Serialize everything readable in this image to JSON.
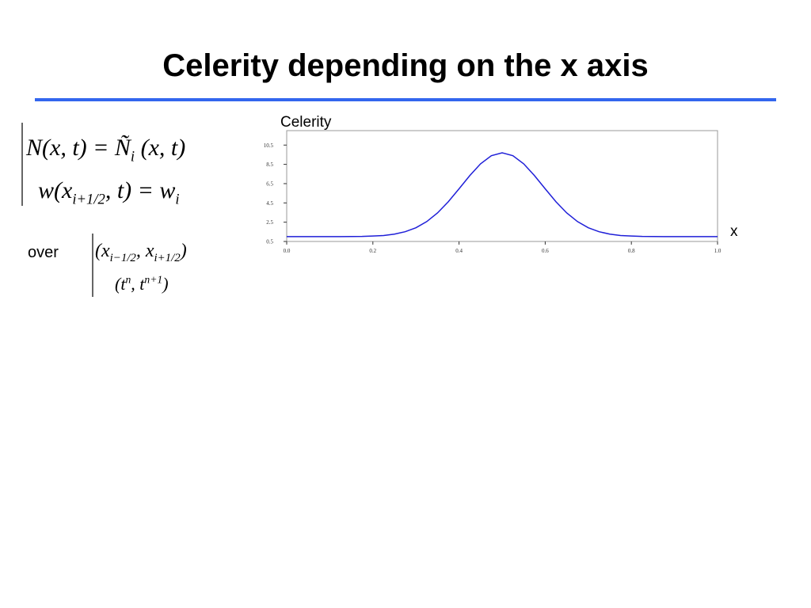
{
  "header": {
    "title": "Celerity depending on the x axis"
  },
  "formulas": [
    [
      {
        "text": "N(x, t) = Ñ"
      },
      {
        "text": "i",
        "pos": "sub"
      },
      {
        "text": " (x, t)"
      }
    ],
    [
      {
        "text": "w(x"
      },
      {
        "text": "i+1/2",
        "pos": "sub"
      },
      {
        "text": ", t) = w"
      },
      {
        "text": "i",
        "pos": "sub"
      }
    ],
    [
      {
        "text": "(x"
      },
      {
        "text": "i−1/2",
        "pos": "sub"
      },
      {
        "text": ", x"
      },
      {
        "text": "i+1/2",
        "pos": "sub"
      },
      {
        "text": ")"
      }
    ],
    [
      {
        "text": "(t"
      },
      {
        "text": "n",
        "pos": "sup"
      },
      {
        "text": ", t"
      },
      {
        "text": "n+1",
        "pos": "sup"
      },
      {
        "text": ")"
      }
    ]
  ],
  "over_label": "over",
  "chart_data": {
    "type": "line",
    "y_label": "Celerity",
    "x_label": "x",
    "x": [
      0,
      0.025,
      0.05,
      0.075,
      0.1,
      0.125,
      0.15,
      0.175,
      0.2,
      0.225,
      0.25,
      0.275,
      0.3,
      0.325,
      0.35,
      0.375,
      0.4,
      0.425,
      0.45,
      0.475,
      0.5,
      0.525,
      0.55,
      0.575,
      0.6,
      0.625,
      0.65,
      0.675,
      0.7,
      0.725,
      0.75,
      0.775,
      0.8,
      0.825,
      0.85,
      0.875,
      0.9,
      0.925,
      0.95,
      0.975,
      1
    ],
    "series": [
      {
        "name": "Celerity",
        "color": "#1f1fd8",
        "values": [
          1,
          1,
          1,
          1,
          1,
          1,
          1.01,
          1.02,
          1.06,
          1.12,
          1.26,
          1.51,
          1.92,
          2.56,
          3.46,
          4.62,
          5.96,
          7.34,
          8.56,
          9.4,
          9.7,
          9.4,
          8.56,
          7.34,
          5.96,
          4.62,
          3.46,
          2.56,
          1.92,
          1.51,
          1.26,
          1.12,
          1.06,
          1.02,
          1.01,
          1,
          1,
          1,
          1,
          1,
          1
        ]
      }
    ],
    "xlim": [
      0,
      1
    ],
    "ylim": [
      0.5,
      12
    ],
    "xticks": [
      {
        "value": 0,
        "label": "0.0"
      },
      0.2,
      0.4,
      0.6,
      0.8,
      {
        "value": 1,
        "label": "1.0"
      }
    ],
    "yticks": [
      0.5,
      2.5,
      4.5,
      6.5,
      8.5,
      10.5
    ]
  }
}
